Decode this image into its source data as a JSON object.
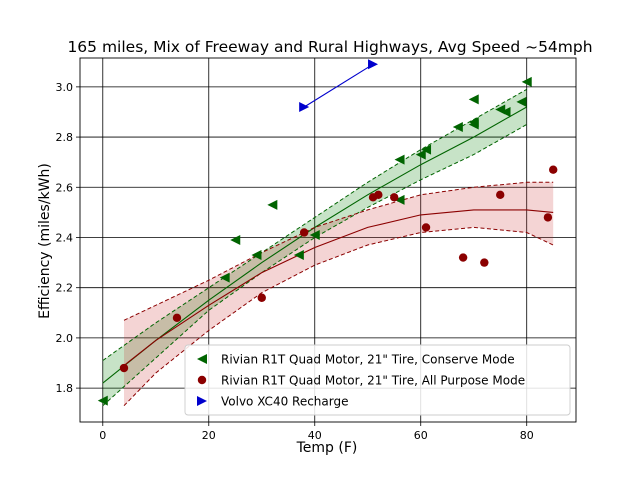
{
  "chart_data": {
    "type": "scatter",
    "title": "165 miles, Mix of Freeway and Rural Highways, Avg Speed ~54mph",
    "xlabel": "Temp (F)",
    "ylabel": "Efficiency (miles/kWh)",
    "xlim": [
      -4.3,
      89.3
    ],
    "ylim": [
      1.665,
      3.115
    ],
    "xticks": [
      0,
      20,
      40,
      60,
      80
    ],
    "yticks": [
      1.8,
      2.0,
      2.2,
      2.4,
      2.6,
      2.8,
      3.0
    ],
    "xtick_labels": [
      "0",
      "20",
      "40",
      "60",
      "80"
    ],
    "ytick_labels": [
      "1.8",
      "2.0",
      "2.2",
      "2.4",
      "2.6",
      "2.8",
      "3.0"
    ],
    "grid": true,
    "legend_position": "lower-right",
    "series": [
      {
        "name": "Rivian R1T Quad Motor, 21\" Tire, Conserve Mode",
        "marker": "triangle-left",
        "color": "#006400",
        "points": [
          {
            "x": 0,
            "y": 1.75
          },
          {
            "x": 23,
            "y": 2.24
          },
          {
            "x": 25,
            "y": 2.39
          },
          {
            "x": 29,
            "y": 2.33
          },
          {
            "x": 32,
            "y": 2.53
          },
          {
            "x": 37,
            "y": 2.33
          },
          {
            "x": 40,
            "y": 2.41
          },
          {
            "x": 56,
            "y": 2.71
          },
          {
            "x": 56,
            "y": 2.55
          },
          {
            "x": 60,
            "y": 2.73
          },
          {
            "x": 61,
            "y": 2.75
          },
          {
            "x": 67,
            "y": 2.84
          },
          {
            "x": 70,
            "y": 2.95
          },
          {
            "x": 70,
            "y": 2.85
          },
          {
            "x": 70,
            "y": 2.86
          },
          {
            "x": 75,
            "y": 2.91
          },
          {
            "x": 76,
            "y": 2.9
          },
          {
            "x": 79,
            "y": 2.94
          },
          {
            "x": 80,
            "y": 3.02
          }
        ],
        "fit": {
          "x": [
            0,
            10,
            20,
            30,
            40,
            50,
            60,
            70,
            80
          ],
          "y": [
            1.82,
            1.99,
            2.15,
            2.3,
            2.44,
            2.57,
            2.69,
            2.8,
            2.92
          ],
          "lower": [
            1.73,
            1.92,
            2.11,
            2.26,
            2.4,
            2.52,
            2.63,
            2.73,
            2.85
          ],
          "upper": [
            1.91,
            2.06,
            2.2,
            2.34,
            2.48,
            2.62,
            2.75,
            2.87,
            2.99
          ]
        }
      },
      {
        "name": "Rivian R1T Quad Motor, 21\" Tire, All Purpose Mode",
        "marker": "circle",
        "color": "#8b0000",
        "points": [
          {
            "x": 4,
            "y": 1.88
          },
          {
            "x": 14,
            "y": 2.08
          },
          {
            "x": 30,
            "y": 2.16
          },
          {
            "x": 38,
            "y": 2.42
          },
          {
            "x": 51,
            "y": 2.56
          },
          {
            "x": 52,
            "y": 2.57
          },
          {
            "x": 55,
            "y": 2.56
          },
          {
            "x": 61,
            "y": 2.44
          },
          {
            "x": 68,
            "y": 2.32
          },
          {
            "x": 72,
            "y": 2.3
          },
          {
            "x": 75,
            "y": 2.57
          },
          {
            "x": 84,
            "y": 2.48
          },
          {
            "x": 85,
            "y": 2.67
          }
        ],
        "fit": {
          "x": [
            4,
            10,
            20,
            30,
            40,
            50,
            60,
            70,
            80,
            85
          ],
          "y": [
            1.89,
            1.99,
            2.13,
            2.26,
            2.36,
            2.44,
            2.49,
            2.51,
            2.51,
            2.5
          ],
          "lower": [
            1.73,
            1.86,
            2.03,
            2.18,
            2.29,
            2.37,
            2.42,
            2.44,
            2.42,
            2.37
          ],
          "upper": [
            2.07,
            2.13,
            2.23,
            2.34,
            2.44,
            2.51,
            2.57,
            2.6,
            2.62,
            2.62
          ]
        }
      },
      {
        "name": "Volvo XC40 Recharge",
        "marker": "triangle-right",
        "color": "#0000cd",
        "points": [
          {
            "x": 38,
            "y": 2.92
          },
          {
            "x": 51,
            "y": 3.09
          }
        ]
      }
    ]
  }
}
